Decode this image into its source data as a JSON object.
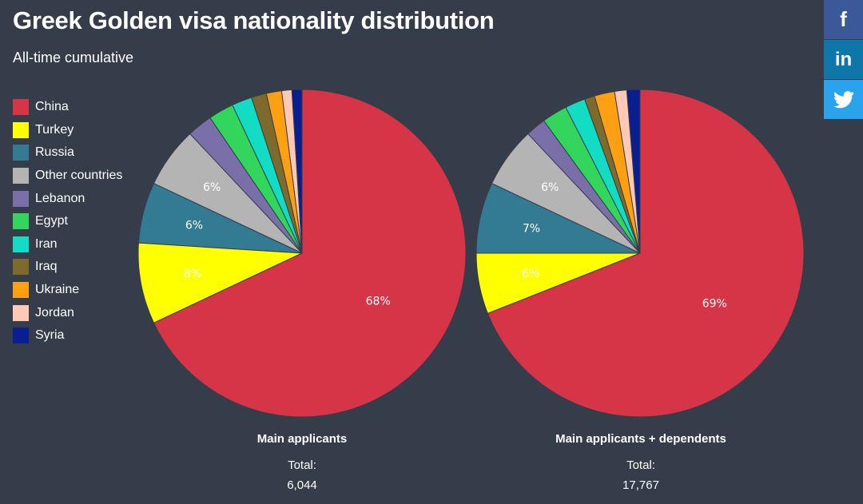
{
  "page": {
    "title": "Greek Golden visa nationality distribution",
    "subtitle": "All-time cumulative"
  },
  "legend": [
    {
      "label": "China",
      "color": "#d63447"
    },
    {
      "label": "Turkey",
      "color": "#ffff00"
    },
    {
      "label": "Russia",
      "color": "#337a93"
    },
    {
      "label": "Other countries",
      "color": "#b4b4b4"
    },
    {
      "label": "Lebanon",
      "color": "#7a6fa8"
    },
    {
      "label": "Egypt",
      "color": "#33d65c"
    },
    {
      "label": "Iran",
      "color": "#12dcc3"
    },
    {
      "label": "Iraq",
      "color": "#7e6b2c"
    },
    {
      "label": "Ukraine",
      "color": "#ffa012"
    },
    {
      "label": "Jordan",
      "color": "#ffc9b5"
    },
    {
      "label": "Syria",
      "color": "#0a1f8f"
    }
  ],
  "chart_data": [
    {
      "type": "pie",
      "title": "Main applicants",
      "total_label": "Total:",
      "total": "6,044",
      "categories": [
        "China",
        "Turkey",
        "Russia",
        "Other countries",
        "Lebanon",
        "Egypt",
        "Iran",
        "Iraq",
        "Ukraine",
        "Jordan",
        "Syria"
      ],
      "values": [
        68,
        8,
        6,
        6,
        2.5,
        2.5,
        2,
        1.5,
        1.5,
        1,
        1
      ],
      "data_labels": [
        "68%",
        "8%",
        "6%",
        "6%",
        "",
        "",
        "",
        "",
        "",
        "",
        ""
      ]
    },
    {
      "type": "pie",
      "title": "Main applicants + dependents",
      "total_label": "Total:",
      "total": "17,767",
      "categories": [
        "China",
        "Turkey",
        "Russia",
        "Other countries",
        "Lebanon",
        "Egypt",
        "Iran",
        "Iraq",
        "Ukraine",
        "Jordan",
        "Syria"
      ],
      "values": [
        69,
        6,
        7,
        6,
        2,
        2.5,
        2,
        1,
        2,
        1.2,
        1.3
      ],
      "data_labels": [
        "69%",
        "6%",
        "7%",
        "6%",
        "",
        "",
        "",
        "",
        "",
        "",
        ""
      ]
    }
  ],
  "share": {
    "facebook_icon": "f",
    "linkedin_icon": "in",
    "twitter_icon": "twitter-bird"
  }
}
